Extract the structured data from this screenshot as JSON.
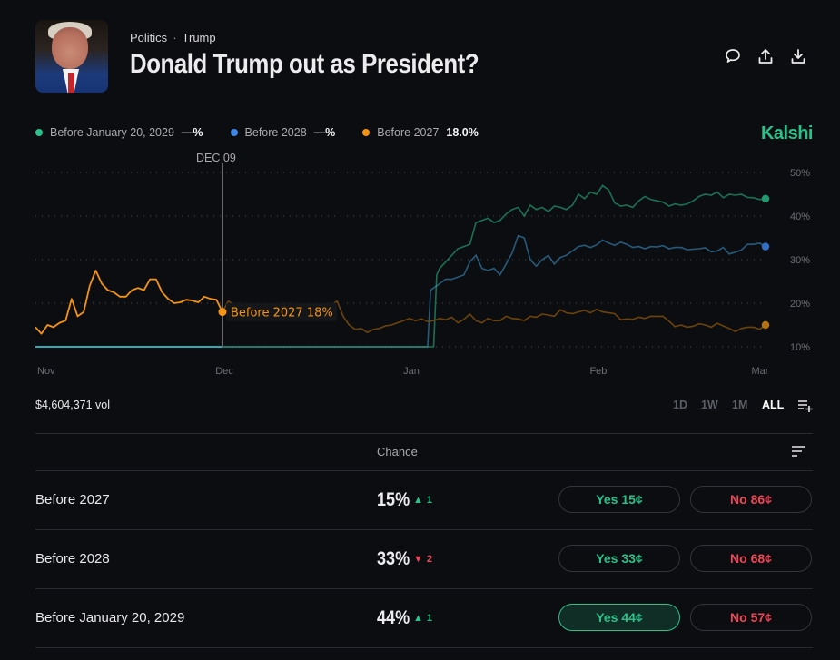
{
  "header": {
    "breadcrumb": [
      "Politics",
      "Trump"
    ],
    "breadcrumb_separator": "·",
    "title": "Donald Trump out as President?",
    "image": "trump-portrait",
    "actions": [
      {
        "name": "comment",
        "icon": "speech-bubble-icon"
      },
      {
        "name": "share",
        "icon": "upload-icon"
      },
      {
        "name": "download",
        "icon": "download-icon"
      }
    ]
  },
  "brand": {
    "name": "Kalshi",
    "color": "#28c28a"
  },
  "legend": [
    {
      "label": "Before January 20, 2029",
      "value": "—%",
      "color": "#28c28a"
    },
    {
      "label": "Before 2028",
      "value": "—%",
      "color": "#3f88e6"
    },
    {
      "label": "Before 2027",
      "value": "18.0%",
      "color": "#f5940f"
    }
  ],
  "hover": {
    "date_label": "DEC 09",
    "tooltip": "Before 2027 18%",
    "series": "Before 2027",
    "value": 18
  },
  "chart_data": {
    "type": "line",
    "title": "",
    "xlabel": "",
    "ylabel": "",
    "x_ticks": [
      "Nov",
      "Dec",
      "Jan",
      "Feb",
      "Mar"
    ],
    "y_ticks": [
      "10%",
      "20%",
      "30%",
      "40%",
      "50%"
    ],
    "ylim": [
      10,
      50
    ],
    "grid": true,
    "y_axis_position": "right",
    "x_range_days": [
      0,
      121
    ],
    "x_tick_days": [
      0,
      31,
      62,
      93,
      123
    ],
    "hover_day": 31,
    "series": [
      {
        "name": "Before 2027",
        "color": "#f5940f",
        "days": [
          0,
          1,
          2,
          3,
          4,
          5,
          6,
          7,
          8,
          9,
          10,
          11,
          12,
          13,
          14,
          15,
          16,
          17,
          18,
          19,
          20,
          21,
          22,
          23,
          24,
          25,
          26,
          27,
          28,
          29,
          30,
          31,
          32,
          33,
          34,
          35,
          36,
          37,
          38,
          39,
          40,
          41,
          42,
          43,
          44,
          45,
          46,
          47,
          48,
          49,
          50,
          51,
          52,
          53,
          54,
          55,
          56,
          57,
          58,
          59,
          60,
          61,
          62,
          63,
          64,
          65,
          66,
          67,
          68,
          69,
          70,
          71,
          72,
          73,
          74,
          75,
          76,
          77,
          78,
          79,
          80,
          81,
          82,
          83,
          84,
          85,
          86,
          87,
          88,
          89,
          90,
          91,
          92,
          93,
          94,
          95,
          96,
          97,
          98,
          99,
          100,
          101,
          102,
          103,
          104,
          105,
          106,
          107,
          108,
          109,
          110,
          111,
          112,
          113,
          114,
          115,
          116,
          117,
          118,
          119,
          120,
          121
        ],
        "values": [
          14.5,
          13,
          15,
          14.5,
          15.5,
          16,
          21,
          17,
          18,
          24,
          27.5,
          24.5,
          23,
          22.5,
          21.5,
          21.5,
          23,
          23.5,
          23,
          25.5,
          25.5,
          22.5,
          21,
          20,
          20.2,
          20.8,
          20.6,
          20.2,
          21.5,
          21,
          20.8,
          18,
          20.5,
          19.5,
          19.8,
          18.2,
          19,
          18.7,
          18.5,
          19,
          19,
          19.3,
          18.8,
          19.3,
          19.5,
          18.8,
          19.5,
          19.6,
          19.2,
          19.5,
          20.5,
          17,
          15,
          14,
          14.2,
          13.3,
          14,
          14.2,
          14.8,
          15,
          15.5,
          16,
          16.5,
          16,
          16.4,
          15.8,
          16,
          16.5,
          16.2,
          16.8,
          15.5,
          16.3,
          17.5,
          16,
          15.5,
          16.5,
          16,
          16,
          17,
          16.5,
          16.4,
          16,
          17,
          16.8,
          17.5,
          17.3,
          17,
          18.5,
          17.8,
          17.6,
          18,
          18.4,
          17.8,
          18.6,
          18,
          17.8,
          17.6,
          16.2,
          16.4,
          16.3,
          16.8,
          16.5,
          17,
          17,
          17,
          15.9,
          14.6,
          15,
          14.5,
          14.7,
          15.3,
          15,
          14.5,
          15.4,
          14.8,
          14.2,
          13.5,
          14.2,
          14.5,
          14.5,
          14,
          15
        ]
      },
      {
        "name": "Before 2028",
        "color": "#3f88e6",
        "days": [
          0,
          65,
          65.5,
          66,
          67,
          68,
          69,
          70,
          71,
          72,
          73,
          74,
          75,
          76,
          77,
          78,
          79,
          80,
          81,
          82,
          83,
          84,
          85,
          86,
          87,
          88,
          89,
          90,
          91,
          92,
          93,
          94,
          95,
          96,
          97,
          98,
          99,
          100,
          101,
          102,
          103,
          104,
          105,
          106,
          107,
          108,
          109,
          110,
          111,
          112,
          113,
          114,
          115,
          116,
          117,
          118,
          119,
          120,
          121
        ],
        "values": [
          10,
          10,
          23,
          23.5,
          24.5,
          25.5,
          25.5,
          26,
          26.5,
          29.5,
          31,
          28,
          27.5,
          28,
          26.5,
          29,
          31.5,
          35.5,
          35,
          30,
          28.5,
          30,
          31,
          29,
          30.5,
          31,
          32,
          33,
          33.3,
          32.8,
          33.4,
          34.5,
          33.8,
          33.3,
          34,
          33.5,
          32.8,
          33,
          32.5,
          33,
          32.9,
          33.2,
          32.5,
          32.8,
          32.8,
          32.3,
          32.4,
          32.5,
          32.7,
          31.8,
          32,
          32.8,
          31.3,
          31.7,
          32.2,
          33.5,
          33.5,
          33.8,
          33
        ]
      },
      {
        "name": "Before January 20, 2029",
        "color": "#28c28a",
        "days": [
          0,
          66,
          66.5,
          67,
          68,
          69,
          70,
          71,
          72,
          73,
          74,
          75,
          76,
          77,
          78,
          79,
          80,
          81,
          82,
          83,
          84,
          85,
          86,
          87,
          88,
          89,
          90,
          91,
          92,
          93,
          94,
          95,
          96,
          97,
          98,
          99,
          100,
          101,
          102,
          103,
          104,
          105,
          106,
          107,
          108,
          109,
          110,
          111,
          112,
          113,
          114,
          115,
          116,
          117,
          118,
          119,
          120,
          121
        ],
        "values": [
          10,
          10,
          26.5,
          28,
          29.5,
          31,
          32.5,
          33,
          33.5,
          38.5,
          39,
          39.5,
          38.5,
          39,
          40.5,
          41.5,
          42,
          40,
          42.5,
          41.5,
          42,
          41,
          42.3,
          42,
          41.5,
          42.5,
          45,
          44,
          45.5,
          45,
          47,
          46,
          43,
          42.3,
          42.5,
          42,
          43.5,
          44.5,
          43.8,
          43.5,
          43.2,
          42.3,
          42.8,
          42.5,
          42.8,
          43.5,
          44.5,
          45,
          44.8,
          45.5,
          44.2,
          45,
          44.8,
          45,
          44.3,
          44.2,
          43.8,
          44
        ]
      }
    ]
  },
  "volume": "$4,604,371 vol",
  "time_ranges": [
    {
      "label": "1D",
      "active": false
    },
    {
      "label": "1W",
      "active": false
    },
    {
      "label": "1M",
      "active": false
    },
    {
      "label": "ALL",
      "active": true
    }
  ],
  "table": {
    "column_header": "Chance",
    "rows": [
      {
        "label": "Before 2027",
        "chance": "15%",
        "delta": "1",
        "direction": "up",
        "yes": "Yes 15¢",
        "no": "No 86¢",
        "yes_selected": false
      },
      {
        "label": "Before 2028",
        "chance": "33%",
        "delta": "2",
        "direction": "down",
        "yes": "Yes 33¢",
        "no": "No 68¢",
        "yes_selected": false
      },
      {
        "label": "Before January 20, 2029",
        "chance": "44%",
        "delta": "1",
        "direction": "up",
        "yes": "Yes 44¢",
        "no": "No 57¢",
        "yes_selected": true
      }
    ]
  },
  "colors": {
    "yes": "#28c28a",
    "no": "#f0465a",
    "background": "#0c0d10"
  }
}
